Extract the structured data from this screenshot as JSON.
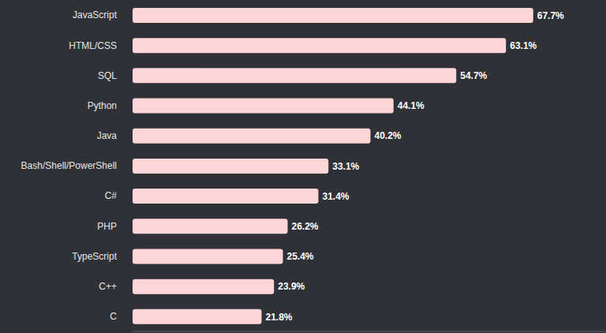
{
  "chart_data": {
    "type": "bar",
    "orientation": "horizontal",
    "categories": [
      "JavaScript",
      "HTML/CSS",
      "SQL",
      "Python",
      "Java",
      "Bash/Shell/PowerShell",
      "C#",
      "PHP",
      "TypeScript",
      "C++",
      "C"
    ],
    "values": [
      67.7,
      63.1,
      54.7,
      44.1,
      40.2,
      33.1,
      31.4,
      26.2,
      25.4,
      23.9,
      21.8
    ],
    "value_labels": [
      "67.7%",
      "63.1%",
      "54.7%",
      "44.1%",
      "40.2%",
      "33.1%",
      "31.4%",
      "26.2%",
      "25.4%",
      "23.9%",
      "21.8%"
    ],
    "color": "#ffd6d7",
    "xlim": [
      0,
      80
    ],
    "grid": false,
    "data_labels": true,
    "tick_labels": "y"
  }
}
